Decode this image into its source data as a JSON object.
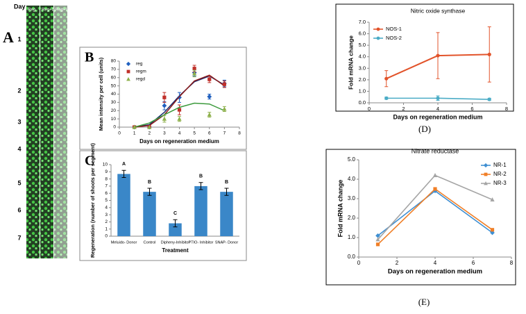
{
  "panel_a": {
    "letter": "A",
    "day_label": "Day",
    "columns": [
      "Reg",
      "Reg+D",
      "Reg+I"
    ],
    "days": [
      "1",
      "2",
      "3",
      "4",
      "5",
      "6",
      "7"
    ]
  },
  "chart_data": [
    {
      "type": "scatter",
      "panel_label": "B",
      "xlabel": "Days on regeneration medium",
      "ylabel": "Mean intensity per cell (units)",
      "x": [
        1,
        2,
        3,
        4,
        5,
        6,
        7
      ],
      "xlim": [
        0,
        8
      ],
      "xticks": [
        0,
        1,
        2,
        3,
        4,
        5,
        6,
        7,
        8
      ],
      "ylim": [
        0,
        80
      ],
      "yticks": [
        0,
        10,
        20,
        30,
        40,
        50,
        60,
        70,
        80
      ],
      "legend": "top-left",
      "series": [
        {
          "name": "reg",
          "color": "#1f5fbf",
          "trend_color": "#1a2a6c",
          "marker": "diamond",
          "values": [
            0,
            0,
            26,
            36,
            66,
            37,
            53
          ],
          "errors": [
            null,
            null,
            5,
            6,
            4,
            3,
            4
          ],
          "trend": [
            0,
            3,
            18,
            38,
            55,
            62,
            51
          ]
        },
        {
          "name": "regm",
          "color": "#c0302a",
          "trend_color": "#8b1a1a",
          "marker": "square",
          "values": [
            0,
            0,
            36,
            21,
            71,
            58,
            52
          ],
          "errors": [
            null,
            null,
            6,
            6,
            4,
            4,
            4
          ],
          "trend": [
            0,
            2,
            15,
            37,
            56,
            63,
            50
          ]
        },
        {
          "name": "regd",
          "color": "#8db04a",
          "trend_color": "#3c9a3c",
          "marker": "triangle",
          "values": [
            0,
            0,
            10,
            10,
            65,
            15,
            22
          ],
          "errors": [
            null,
            null,
            4,
            3,
            4,
            3,
            3
          ],
          "trend": [
            0,
            5,
            15,
            24,
            29,
            28,
            20
          ]
        }
      ]
    },
    {
      "type": "bar",
      "panel_label": "C",
      "xlabel": "Treatment",
      "ylabel": "Regeneration (number of shoots per segment)",
      "categories": [
        "Meluido- Donor",
        "Control",
        "Dipheny-Inhibitor",
        "PTIO- Inhibitor",
        "SNAP- Donor"
      ],
      "values": [
        8.7,
        6.2,
        1.8,
        7.0,
        6.2
      ],
      "errors": [
        0.5,
        0.5,
        0.5,
        0.5,
        0.5
      ],
      "bar_letters": [
        "A",
        "B",
        "C",
        "B",
        "B"
      ],
      "color": "#3a87c8",
      "ylim": [
        0,
        10
      ],
      "yticks": [
        0,
        1,
        2,
        3,
        4,
        5,
        6,
        7,
        8,
        9,
        10
      ]
    },
    {
      "type": "line",
      "title": "Nitric oxide synthase",
      "caption": "(D)",
      "xlabel": "Days on regeneration medium",
      "ylabel": "Fold mRNA change",
      "x": [
        1,
        4,
        7
      ],
      "xlim": [
        0,
        8
      ],
      "xticks": [
        0,
        2,
        4,
        6,
        8
      ],
      "ylim": [
        0,
        7
      ],
      "yticks": [
        {
          "value": 0,
          "label": "0.0"
        },
        {
          "value": 1,
          "label": "1.0"
        },
        {
          "value": 2,
          "label": "2.0"
        },
        {
          "value": 3,
          "label": "3.0"
        },
        {
          "value": 4,
          "label": "4.0"
        },
        {
          "value": 5,
          "label": "5.0"
        },
        {
          "value": 6,
          "label": "6.0"
        },
        {
          "value": 7,
          "label": "7.0"
        }
      ],
      "legend": "top-left",
      "series": [
        {
          "name": "NOS-1",
          "color": "#e2532a",
          "marker": "circle",
          "values": [
            2.1,
            4.1,
            4.2
          ],
          "errors": [
            0.7,
            2.0,
            2.4
          ]
        },
        {
          "name": "NOS-2",
          "color": "#4bacc6",
          "marker": "circle",
          "values": [
            0.4,
            0.4,
            0.3
          ],
          "errors": [
            0.1,
            0.2,
            0.1
          ]
        }
      ]
    },
    {
      "type": "line",
      "title": "Nitrate reductase",
      "caption": "(E)",
      "xlabel": "Days on regeneration medium",
      "ylabel": "Fold mRNA change",
      "x": [
        1,
        4,
        7
      ],
      "xlim": [
        0,
        8
      ],
      "xticks": [
        0,
        2,
        4,
        6,
        8
      ],
      "ylim": [
        0,
        5
      ],
      "yticks": [
        {
          "value": 0,
          "label": "0.0"
        },
        {
          "value": 1,
          "label": "1.0"
        },
        {
          "value": 2,
          "label": "2.0"
        },
        {
          "value": 3,
          "label": "3.0"
        },
        {
          "value": 4,
          "label": "4.0"
        },
        {
          "value": 5,
          "label": "5.0"
        }
      ],
      "legend": "top-right",
      "series": [
        {
          "name": "NR-1",
          "color": "#3f8fd2",
          "marker": "diamond",
          "values": [
            1.1,
            3.4,
            1.25
          ]
        },
        {
          "name": "NR-2",
          "color": "#f07f27",
          "marker": "square",
          "values": [
            0.65,
            3.5,
            1.4
          ]
        },
        {
          "name": "NR-3",
          "color": "#a5a5a5",
          "marker": "triangle",
          "values": [
            0.9,
            4.2,
            2.95
          ]
        }
      ]
    }
  ]
}
